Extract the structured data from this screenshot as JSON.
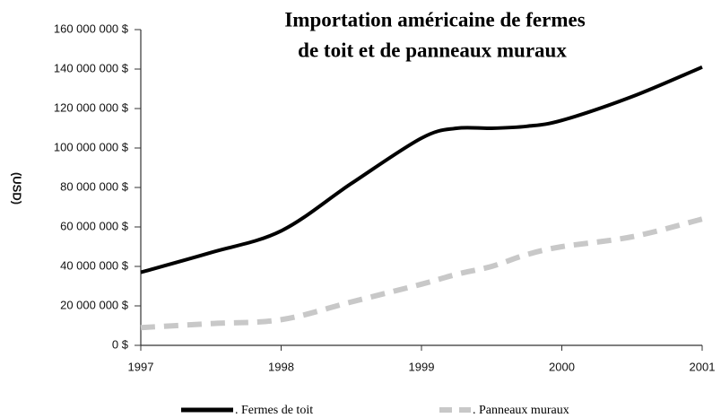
{
  "chart_data": {
    "type": "line",
    "title_lines": [
      "Importation américaine de fermes",
      "de toit  et de panneaux muraux"
    ],
    "y_label": "(USD)",
    "x": [
      1997,
      1997.5,
      1998,
      1998.5,
      1999,
      1999.25,
      1999.5,
      1999.75,
      2000,
      2000.5,
      2001
    ],
    "series": [
      {
        "name": ". Fermes de toit",
        "color": "#000000",
        "dashed": false,
        "values": [
          37000000,
          47000000,
          58000000,
          82000000,
          105000000,
          110000000,
          110000000,
          111000000,
          114000000,
          126000000,
          141000000
        ]
      },
      {
        "name": ". Panneaux muraux",
        "color": "#c8c8c8",
        "dashed": true,
        "values": [
          9000000,
          11000000,
          13000000,
          22000000,
          31000000,
          36000000,
          40000000,
          46000000,
          50000000,
          55000000,
          64000000
        ]
      }
    ],
    "xlim": [
      1997,
      2001
    ],
    "xticks": [
      1997,
      1998,
      1999,
      2000,
      2001
    ],
    "ylim": [
      0,
      160000000
    ],
    "yticks": [
      {
        "value": 0,
        "label": "0 $"
      },
      {
        "value": 20000000,
        "label": "20 000 000 $"
      },
      {
        "value": 40000000,
        "label": "40 000 000 $"
      },
      {
        "value": 60000000,
        "label": "60 000 000 $"
      },
      {
        "value": 80000000,
        "label": "80 000 000 $"
      },
      {
        "value": 100000000,
        "label": "100 000 000 $"
      },
      {
        "value": 120000000,
        "label": "120 000 000 $"
      },
      {
        "value": 140000000,
        "label": "140 000 000 $"
      },
      {
        "value": 160000000,
        "label": "160 000 000 $"
      }
    ],
    "grid": false
  }
}
